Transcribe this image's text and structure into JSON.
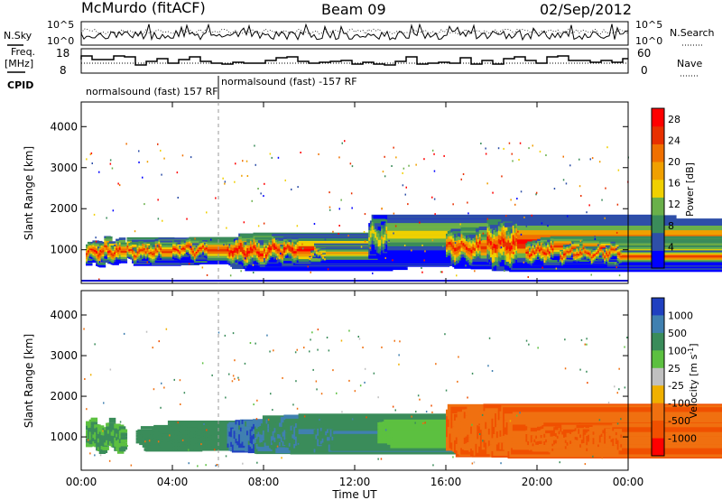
{
  "header": {
    "station": "McMurdo (fitACF)",
    "beam": "Beam 09",
    "date": "02/Sep/2012"
  },
  "top_panels": {
    "nsky_label": "N.Sky",
    "nsearch_label": "N.Search",
    "freq_label_line1": "Freq.",
    "freq_label_line2": "[MHz]",
    "nave_label": "Nave",
    "cpid_label": "CPID",
    "noise_ticks": [
      "10^5",
      "10^0"
    ],
    "freq_ticks": [
      "18",
      "8"
    ],
    "nave_ticks": [
      "60",
      "0"
    ],
    "cpid_events": [
      {
        "label": "normalsound (fast) 157 RF",
        "start_hour": 0
      },
      {
        "label": "normalsound (fast) -157 RF",
        "start_hour": 6.0
      }
    ]
  },
  "colors": {
    "power_scale": [
      "#0000ff",
      "#2e4fa8",
      "#3a8c5a",
      "#6ab04a",
      "#f0d000",
      "#f0a000",
      "#f07000",
      "#e83000",
      "#ff0000"
    ],
    "velocity_scale": [
      "#2040c0",
      "#4080b0",
      "#3a8c5a",
      "#5cc040",
      "#c0c0c0",
      "#f0b000",
      "#f07010",
      "#f05000",
      "#ff0000"
    ]
  },
  "chart_data": [
    {
      "type": "heatmap",
      "name": "power",
      "xlabel": "",
      "ylabel": "Slant Range [km]",
      "x_ticks": [
        "00:00",
        "04:00",
        "08:00",
        "12:00",
        "16:00",
        "20:00",
        "00:00"
      ],
      "xlim": [
        0,
        24
      ],
      "ylim": [
        180,
        4600
      ],
      "y_ticks": [
        1000,
        2000,
        3000,
        4000
      ],
      "colorbar_label": "Power [dB]",
      "colorbar_ticks": [
        4,
        8,
        12,
        16,
        20,
        24,
        28
      ],
      "colorbar_range": [
        0,
        30
      ],
      "blobs": [
        {
          "t0": 0.2,
          "t1": 1.8,
          "r0": 600,
          "r1": 1300,
          "peak": 28
        },
        {
          "t0": 2.0,
          "t1": 3.6,
          "r0": 650,
          "r1": 1250,
          "peak": 27
        },
        {
          "t0": 4.0,
          "t1": 5.6,
          "r0": 700,
          "r1": 1300,
          "peak": 28
        },
        {
          "t0": 6.4,
          "t1": 7.9,
          "r0": 550,
          "r1": 1350,
          "peak": 30
        },
        {
          "t0": 8.0,
          "t1": 9.6,
          "r0": 650,
          "r1": 1350,
          "peak": 30
        },
        {
          "t0": 10.0,
          "t1": 10.8,
          "r0": 700,
          "r1": 1100,
          "peak": 22
        },
        {
          "t0": 12.6,
          "t1": 13.5,
          "r0": 800,
          "r1": 1800,
          "peak": 18
        },
        {
          "t0": 16.0,
          "t1": 17.6,
          "r0": 600,
          "r1": 1500,
          "peak": 28
        },
        {
          "t0": 17.8,
          "t1": 19.2,
          "r0": 500,
          "r1": 1700,
          "peak": 29
        },
        {
          "t0": 19.5,
          "t1": 20.8,
          "r0": 600,
          "r1": 1300,
          "peak": 28
        },
        {
          "t0": 21.0,
          "t1": 23.8,
          "r0": 650,
          "r1": 1200,
          "peak": 28
        }
      ]
    },
    {
      "type": "heatmap",
      "name": "velocity",
      "xlabel": "Time UT",
      "ylabel": "Slant Range [km]",
      "x_ticks": [
        "00:00",
        "04:00",
        "08:00",
        "12:00",
        "16:00",
        "20:00",
        "00:00"
      ],
      "xlim": [
        0,
        24
      ],
      "ylim": [
        180,
        4600
      ],
      "y_ticks": [
        1000,
        2000,
        3000,
        4000
      ],
      "colorbar_label": "Velocity [m s",
      "colorbar_label_exp": "-1",
      "colorbar_label_end": "]",
      "colorbar_ticks": [
        "1000",
        "500",
        "100",
        "25",
        "-25",
        "-100",
        "-500",
        "-1000"
      ],
      "blobs": [
        {
          "t0": 0.2,
          "t1": 1.8,
          "r0": 650,
          "r1": 1400,
          "vel": 100
        },
        {
          "t0": 2.4,
          "t1": 3.6,
          "r0": 700,
          "r1": 1250,
          "vel": 300
        },
        {
          "t0": 3.8,
          "t1": 5.8,
          "r0": 700,
          "r1": 1350,
          "vel": 300
        },
        {
          "t0": 6.4,
          "t1": 7.6,
          "r0": 650,
          "r1": 1450,
          "vel": 800
        },
        {
          "t0": 7.6,
          "t1": 9.6,
          "r0": 650,
          "r1": 1500,
          "vel": 400
        },
        {
          "t0": 10.2,
          "t1": 11.2,
          "r0": 650,
          "r1": 1350,
          "vel": 400
        },
        {
          "t0": 13.0,
          "t1": 13.7,
          "r0": 800,
          "r1": 1400,
          "vel": 60
        },
        {
          "t0": 16.0,
          "t1": 19.0,
          "r0": 550,
          "r1": 1750,
          "vel": -400
        },
        {
          "t0": 19.5,
          "t1": 23.8,
          "r0": 650,
          "r1": 1300,
          "vel": -400
        }
      ]
    }
  ]
}
